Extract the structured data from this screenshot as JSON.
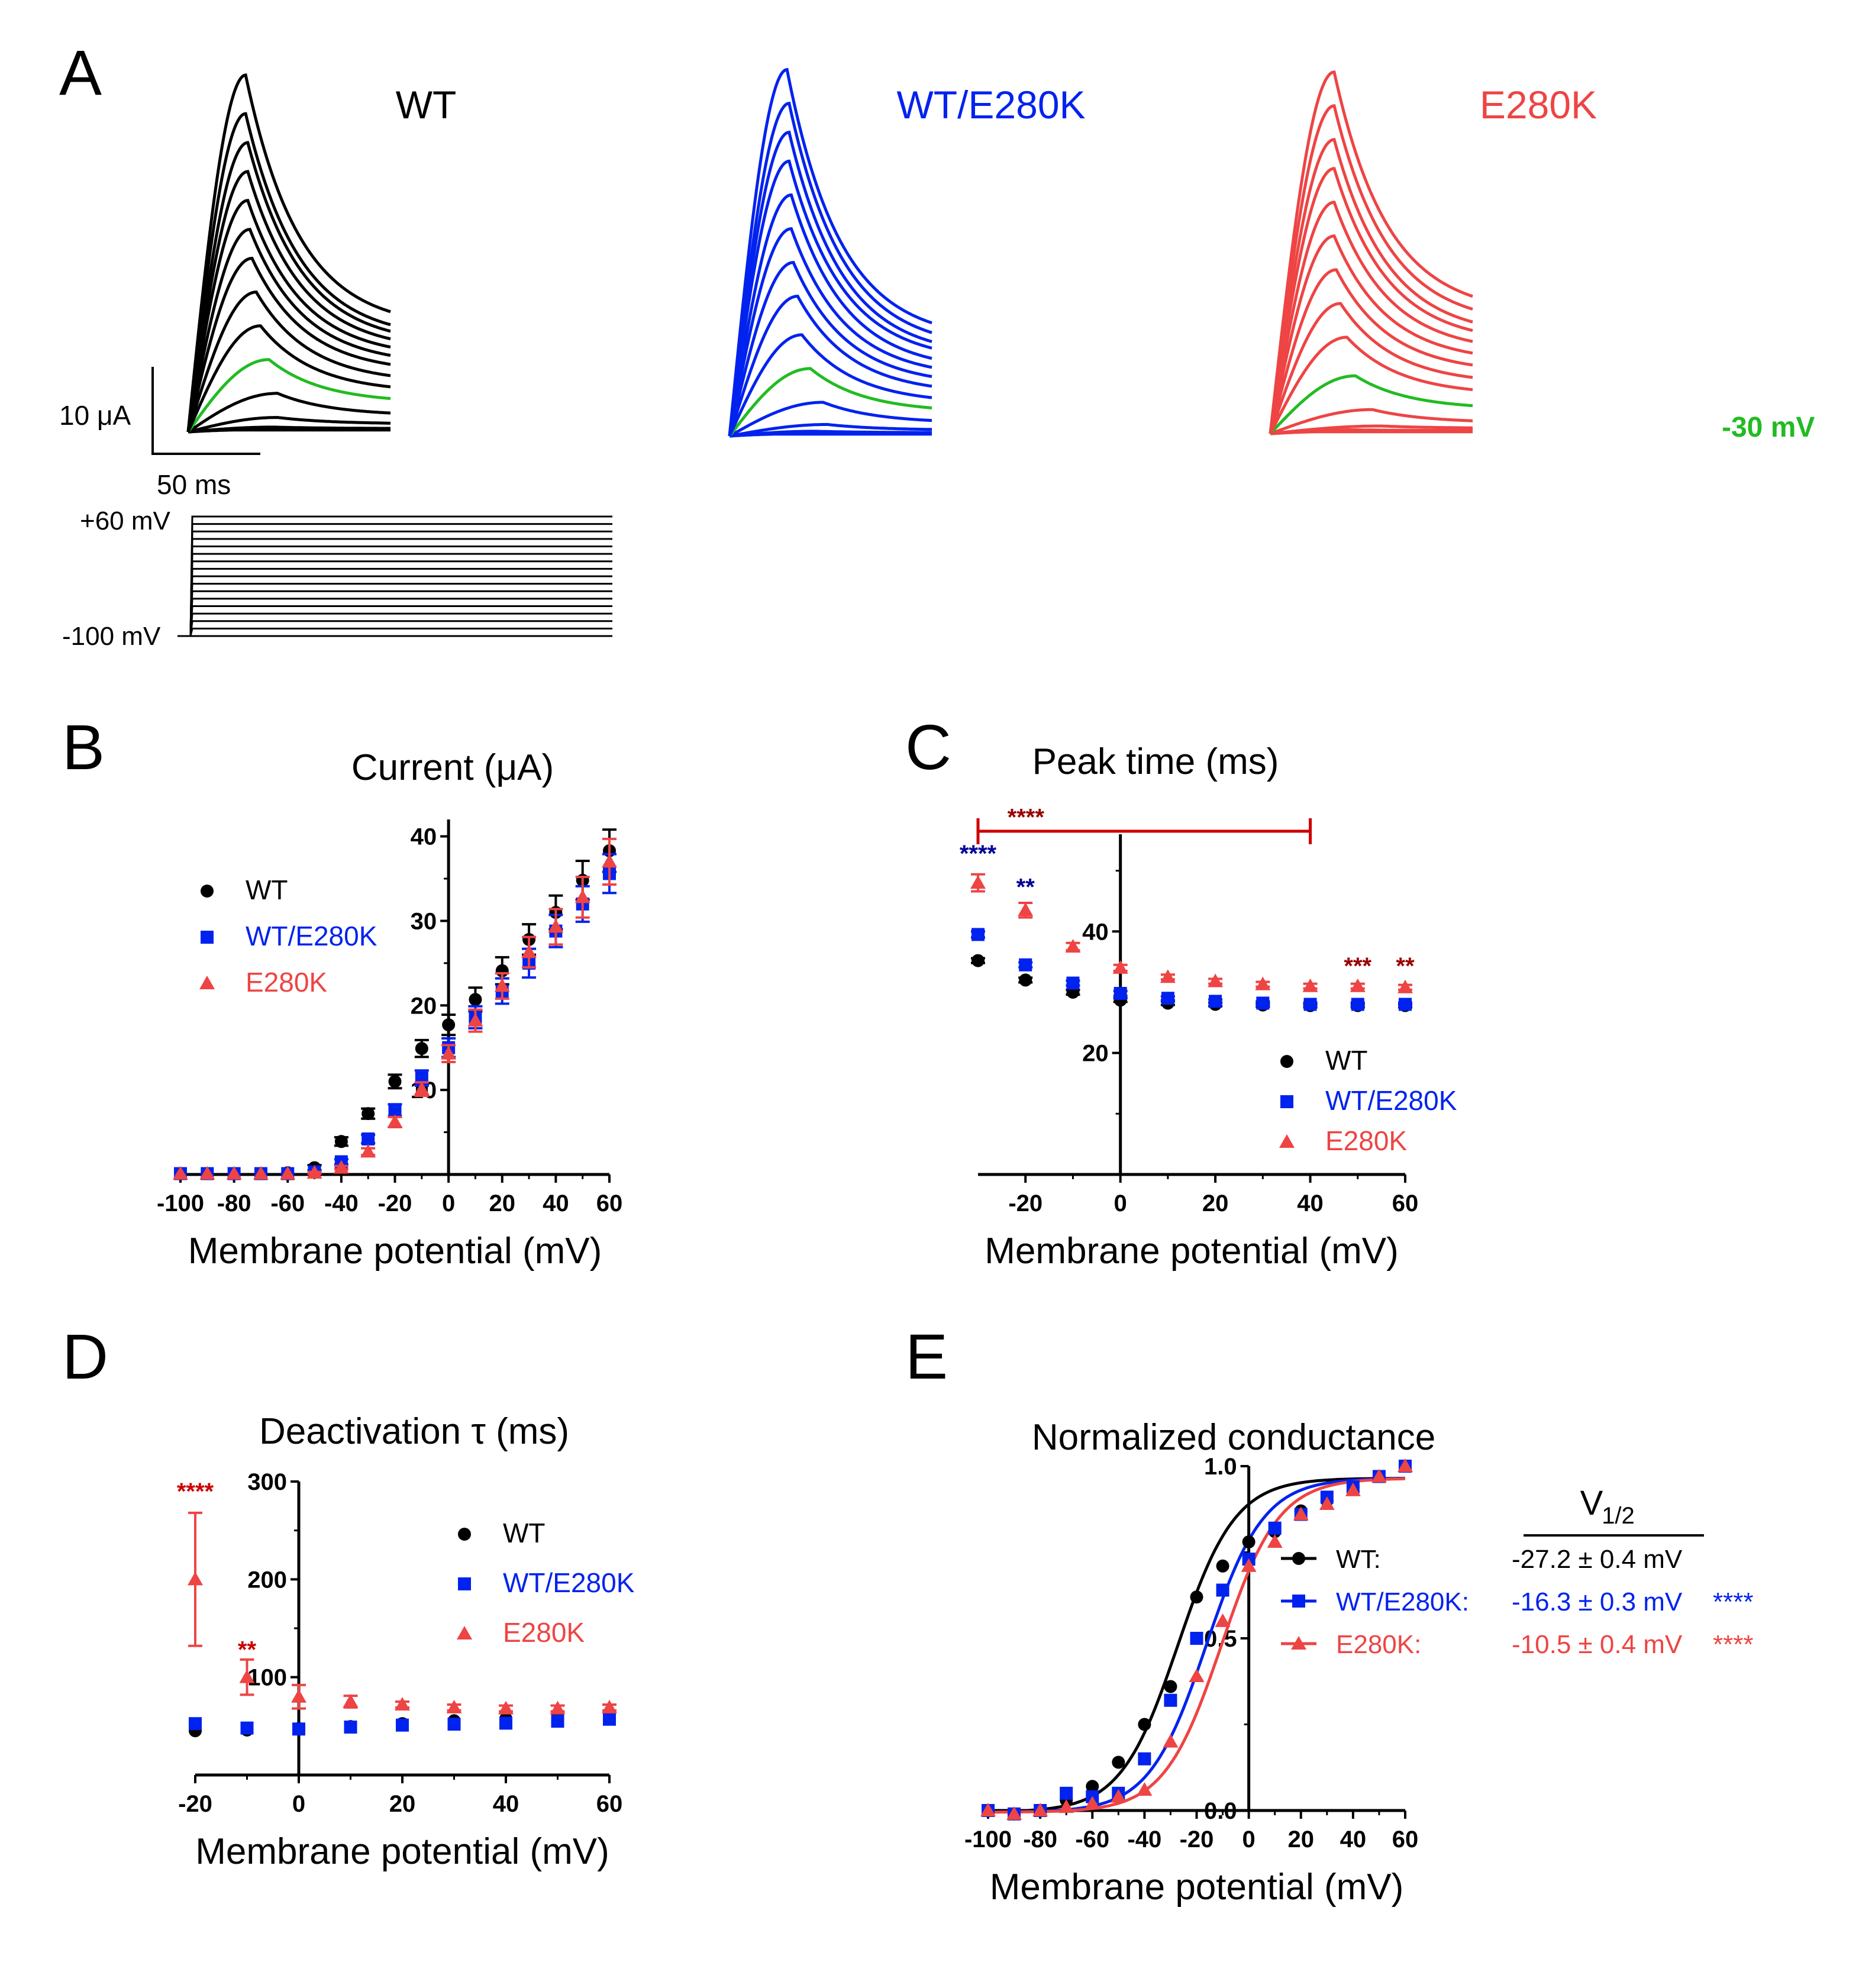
{
  "panel_letters": {
    "A": "A",
    "B": "B",
    "C": "C",
    "D": "D",
    "E": "E"
  },
  "colors": {
    "WT": "#000000",
    "WT/E280K": "#0022ee",
    "E280K": "#ee4444",
    "highlight": "#22bb22",
    "sig_red": "#cc0000",
    "sig_blue": "#000099",
    "sig_darkred": "#990000"
  },
  "panel_A": {
    "titles": [
      "WT",
      "WT/E280K",
      "E280K"
    ],
    "highlight_label": "-30 mV",
    "scale_bar": {
      "current_label": "10 μA",
      "time_label": "50 ms"
    },
    "protocol": {
      "top_label": "+60 mV",
      "bottom_label": "-100 mV",
      "n_steps": 17
    },
    "traces": {
      "WT": {
        "peaks_uA": [
          0.2,
          0.3,
          0.3,
          0.3,
          0.5,
          1.5,
          4.0,
          7.5,
          11.0,
          14.5,
          18.0,
          21.0,
          24.0,
          27.0,
          30.0,
          33.0,
          37.0
        ],
        "tpeak_ms": [
          25,
          25,
          25,
          25,
          40,
          42,
          42,
          38,
          34,
          32,
          30,
          29,
          28,
          28,
          28,
          27,
          27
        ],
        "final_ratio": [
          1,
          1,
          1,
          1,
          0.7,
          0.55,
          0.42,
          0.4,
          0.37,
          0.35,
          0.34,
          0.33,
          0.32,
          0.31,
          0.3,
          0.29,
          0.29
        ]
      },
      "WT/E280K": {
        "peaks_uA": [
          0.2,
          0.3,
          0.3,
          0.3,
          0.5,
          1.2,
          3.5,
          7.0,
          10.5,
          14.5,
          18.0,
          21.5,
          25.0,
          28.5,
          31.5,
          34.5,
          38.0
        ],
        "tpeak_ms": [
          25,
          25,
          25,
          25,
          40,
          46,
          44,
          38,
          34,
          32,
          30,
          29,
          29,
          28,
          28,
          28,
          27
        ],
        "final_ratio": [
          1,
          1,
          1,
          1,
          0.7,
          0.5,
          0.38,
          0.35,
          0.32,
          0.3,
          0.29,
          0.28,
          0.27,
          0.27,
          0.26,
          0.26,
          0.26
        ]
      },
      "E280K": {
        "peaks_uA": [
          0.2,
          0.3,
          0.3,
          0.3,
          0.4,
          0.8,
          2.5,
          6.0,
          10.0,
          13.5,
          17.0,
          20.5,
          24.0,
          27.5,
          30.5,
          34.0,
          37.5
        ],
        "tpeak_ms": [
          25,
          25,
          25,
          25,
          40,
          52,
          48,
          40,
          36,
          33,
          31,
          30,
          30,
          30,
          30,
          30,
          30
        ],
        "final_ratio": [
          1,
          1,
          1,
          1,
          0.8,
          0.7,
          0.45,
          0.42,
          0.4,
          0.38,
          0.37,
          0.36,
          0.35,
          0.34,
          0.33,
          0.33,
          0.33
        ]
      }
    }
  },
  "chart_data": [
    {
      "panel": "B",
      "type": "scatter",
      "title": "Current (μA)",
      "xlabel": "Membrane potential (mV)",
      "ylabel": "",
      "xlim": [
        -100,
        60
      ],
      "ylim": [
        0,
        42
      ],
      "x_ticks": [
        -100,
        -80,
        -60,
        -40,
        -20,
        0,
        20,
        40,
        60
      ],
      "y_ticks": [
        10,
        20,
        30,
        40
      ],
      "legend": [
        "WT",
        "WT/E280K",
        "E280K"
      ],
      "legend_position": "left",
      "series": [
        {
          "name": "WT",
          "marker": "circle",
          "x": [
            -100,
            -90,
            -80,
            -70,
            -60,
            -50,
            -40,
            -30,
            -20,
            -10,
            0,
            10,
            20,
            30,
            40,
            50,
            60
          ],
          "y": [
            0.1,
            0.1,
            0.1,
            0.1,
            0.2,
            0.8,
            3.9,
            7.2,
            11.0,
            14.9,
            17.7,
            20.7,
            24.1,
            27.8,
            31.0,
            34.8,
            38.3
          ],
          "err": [
            0,
            0,
            0,
            0,
            0,
            0.3,
            0.5,
            0.6,
            0.8,
            1.0,
            1.2,
            1.4,
            1.6,
            1.8,
            2.0,
            2.3,
            2.5
          ]
        },
        {
          "name": "WT/E280K",
          "marker": "square",
          "x": [
            -100,
            -90,
            -80,
            -70,
            -60,
            -50,
            -40,
            -30,
            -20,
            -10,
            0,
            10,
            20,
            30,
            40,
            50,
            60
          ],
          "y": [
            0.1,
            0.1,
            0.1,
            0.1,
            0.1,
            0.3,
            1.5,
            4.2,
            7.6,
            11.4,
            15.0,
            18.6,
            21.7,
            25.0,
            28.8,
            32.0,
            35.6
          ],
          "err": [
            0,
            0,
            0,
            0,
            0,
            0.2,
            0.3,
            0.5,
            0.7,
            0.9,
            1.1,
            1.3,
            1.5,
            1.7,
            1.9,
            2.1,
            2.3
          ]
        },
        {
          "name": "E280K",
          "marker": "triangle",
          "x": [
            -100,
            -90,
            -80,
            -70,
            -60,
            -50,
            -40,
            -30,
            -20,
            -10,
            0,
            10,
            20,
            30,
            40,
            50,
            60
          ],
          "y": [
            0.1,
            0.1,
            0.1,
            0.1,
            0.1,
            0.2,
            0.8,
            2.7,
            6.2,
            10.1,
            14.3,
            18.2,
            22.3,
            26.3,
            29.3,
            32.8,
            37.0
          ],
          "err": [
            0,
            0,
            0,
            0,
            0,
            0.1,
            0.2,
            0.4,
            0.6,
            0.8,
            1.0,
            1.3,
            1.5,
            1.8,
            2.1,
            2.4,
            2.7
          ]
        }
      ]
    },
    {
      "panel": "C",
      "type": "scatter",
      "title": "Peak time (ms)",
      "xlabel": "Membrane potential (mV)",
      "ylabel": "",
      "xlim": [
        -30,
        60
      ],
      "ylim": [
        0,
        56
      ],
      "x_ticks": [
        -20,
        0,
        20,
        40,
        60
      ],
      "y_ticks": [
        20,
        40
      ],
      "legend": [
        "WT",
        "WT/E280K",
        "E280K"
      ],
      "legend_position": "bottom-right",
      "series": [
        {
          "name": "WT",
          "marker": "circle",
          "x": [
            -30,
            -20,
            -10,
            0,
            10,
            20,
            30,
            40,
            50,
            60
          ],
          "y": [
            35.2,
            32.0,
            30.0,
            28.7,
            28.2,
            28.0,
            27.9,
            27.8,
            27.8,
            27.8
          ],
          "err": [
            0.4,
            0.4,
            0.4,
            0.3,
            0.3,
            0.3,
            0.3,
            0.3,
            0.3,
            0.3
          ]
        },
        {
          "name": "WT/E280K",
          "marker": "square",
          "x": [
            -30,
            -20,
            -10,
            0,
            10,
            20,
            30,
            40,
            50,
            60
          ],
          "y": [
            39.5,
            34.5,
            31.5,
            29.8,
            29.0,
            28.5,
            28.2,
            28.0,
            28.0,
            28.0
          ],
          "err": [
            0.5,
            0.4,
            0.4,
            0.4,
            0.3,
            0.3,
            0.3,
            0.3,
            0.3,
            0.3
          ]
        },
        {
          "name": "E280K",
          "marker": "triangle",
          "x": [
            -30,
            -20,
            -10,
            0,
            10,
            20,
            30,
            40,
            50,
            60
          ],
          "y": [
            48.0,
            43.5,
            37.5,
            34.0,
            32.5,
            31.8,
            31.3,
            31.0,
            31.0,
            30.8
          ],
          "err": [
            1.4,
            1.2,
            0.6,
            0.5,
            0.4,
            0.4,
            0.4,
            0.4,
            0.4,
            0.4
          ]
        }
      ],
      "annotations": [
        {
          "text": "****",
          "x": -30,
          "y": 51.5,
          "color": "sig_blue"
        },
        {
          "text": "**",
          "x": -20,
          "y": 46.0,
          "color": "sig_blue"
        },
        {
          "text": "***",
          "x": 50,
          "y": 33.0,
          "color": "sig_darkred"
        },
        {
          "text": "**",
          "x": 60,
          "y": 33.0,
          "color": "sig_darkred"
        },
        {
          "text": "****",
          "x": 0,
          "y": 57.5,
          "color": "sig_darkred"
        }
      ],
      "bracket": {
        "x_from": -30,
        "x_to": 40,
        "y": 56.5
      }
    },
    {
      "panel": "D",
      "type": "scatter",
      "title": "Deactivation τ (ms)",
      "xlabel": "Membrane potential (mV)",
      "ylabel": "",
      "xlim": [
        -20,
        60
      ],
      "ylim": [
        0,
        300
      ],
      "x_ticks": [
        -20,
        0,
        20,
        40,
        60
      ],
      "y_ticks": [
        100,
        200,
        300
      ],
      "legend": [
        "WT",
        "WT/E280K",
        "E280K"
      ],
      "legend_position": "top-right",
      "series": [
        {
          "name": "WT",
          "marker": "circle",
          "x": [
            -20,
            -10,
            0,
            10,
            20,
            30,
            40,
            50,
            60
          ],
          "y": [
            45.2,
            46.0,
            47.5,
            49.5,
            52.5,
            55.5,
            57.5,
            59.5,
            62.5
          ],
          "err": [
            0,
            0,
            0,
            0,
            0,
            0,
            0,
            0,
            0
          ]
        },
        {
          "name": "WT/E280K",
          "marker": "square",
          "x": [
            -20,
            -10,
            0,
            10,
            20,
            30,
            40,
            50,
            60
          ],
          "y": [
            52.5,
            48.0,
            47.0,
            49.0,
            51.0,
            52.0,
            53.0,
            55.0,
            57.0
          ],
          "err": [
            0,
            0,
            0,
            0,
            0,
            0,
            0,
            0,
            0
          ]
        },
        {
          "name": "E280K",
          "marker": "triangle",
          "x": [
            -20,
            -10,
            0,
            10,
            20,
            30,
            40,
            50,
            60
          ],
          "y": [
            200.0,
            100.0,
            80.0,
            75.0,
            72.0,
            69.0,
            68.0,
            68.0,
            69.0
          ],
          "err": [
            68,
            18,
            12,
            6,
            3,
            3,
            3,
            3,
            3
          ]
        }
      ],
      "annotations": [
        {
          "text": "****",
          "x": -20,
          "y": 282,
          "color": "sig_red"
        },
        {
          "text": "**",
          "x": -10,
          "y": 120,
          "color": "sig_red"
        }
      ]
    },
    {
      "panel": "E",
      "type": "scatter",
      "title": "Normalized conductance",
      "xlabel": "Membrane potential (mV)",
      "ylabel": "",
      "xlim": [
        -100,
        60
      ],
      "ylim": [
        0,
        1.0
      ],
      "x_ticks": [
        -100,
        -80,
        -60,
        -40,
        -20,
        0,
        20,
        40,
        60
      ],
      "y_ticks": [
        0.0,
        0.5,
        1.0
      ],
      "y_tick_labels": [
        "0.0",
        "0.5",
        "1.0"
      ],
      "legend_header": "V1/2",
      "legend_position": "right",
      "legend": [
        {
          "name": "WT:",
          "v_half_label": "-27.2 ± 0.4 mV",
          "stars": ""
        },
        {
          "name": "WT/E280K:",
          "v_half_label": "-16.3 ± 0.3 mV",
          "stars": "****"
        },
        {
          "name": "E280K:",
          "v_half_label": "-10.5 ± 0.4 mV",
          "stars": "****"
        }
      ],
      "series": [
        {
          "name": "WT",
          "marker": "circle",
          "v_half": -27.2,
          "slope": 11.0,
          "x": [
            -100,
            -90,
            -80,
            -70,
            -60,
            -50,
            -40,
            -30,
            -20,
            -10,
            0,
            10,
            20,
            30,
            40,
            50,
            60
          ],
          "y": [
            0.0,
            -0.01,
            0.0,
            0.03,
            0.07,
            0.14,
            0.25,
            0.36,
            0.62,
            0.71,
            0.78,
            0.81,
            0.87,
            0.9,
            0.94,
            0.97,
            1.0
          ]
        },
        {
          "name": "WT/E280K",
          "marker": "square",
          "x": [
            -100,
            -90,
            -80,
            -70,
            -60,
            -50,
            -40,
            -30,
            -20,
            -10,
            0,
            10,
            20,
            30,
            40,
            50,
            60
          ],
          "v_half": -16.3,
          "slope": 11.0,
          "y": [
            0.0,
            -0.01,
            0.0,
            0.05,
            0.04,
            0.05,
            0.15,
            0.32,
            0.5,
            0.64,
            0.73,
            0.82,
            0.86,
            0.91,
            0.94,
            0.97,
            1.0
          ]
        },
        {
          "name": "E280K",
          "marker": "triangle",
          "x": [
            -100,
            -90,
            -80,
            -70,
            -60,
            -50,
            -40,
            -30,
            -20,
            -10,
            0,
            10,
            20,
            30,
            40,
            50,
            60
          ],
          "v_half": -10.5,
          "slope": 11.0,
          "y": [
            0.0,
            -0.01,
            0.0,
            0.01,
            0.02,
            0.04,
            0.06,
            0.2,
            0.39,
            0.55,
            0.71,
            0.78,
            0.86,
            0.89,
            0.93,
            0.97,
            1.0
          ]
        }
      ]
    }
  ]
}
